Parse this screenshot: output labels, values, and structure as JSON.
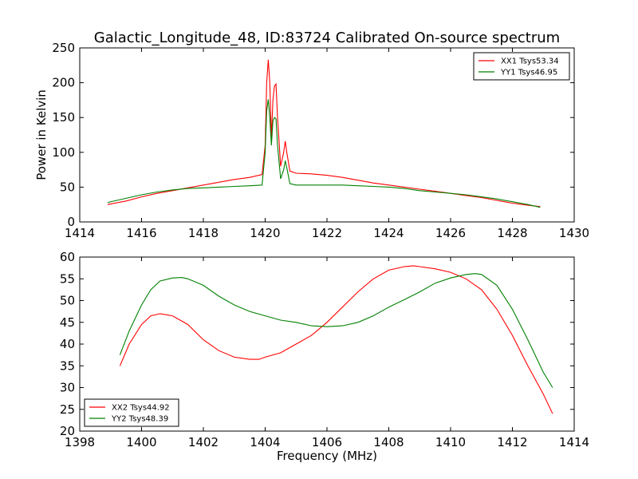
{
  "title": "Galactic_Longitude_48, ID:83724 Calibrated On-source spectrum",
  "chart_data": [
    {
      "type": "line",
      "ylabel": "Power in Kelvin",
      "xlabel": "",
      "xlim": [
        1414,
        1430
      ],
      "ylim": [
        0,
        250
      ],
      "xticks": [
        "1414",
        "1416",
        "1418",
        "1420",
        "1422",
        "1424",
        "1426",
        "1428",
        "1430"
      ],
      "yticks": [
        "0",
        "50",
        "100",
        "150",
        "200",
        "250"
      ],
      "legend_position": "upper-right",
      "series": [
        {
          "name": "XX1 Tsys53.34",
          "color": "#ff0000",
          "x": [
            1414.9,
            1415.5,
            1416.0,
            1416.5,
            1417.0,
            1417.5,
            1418.0,
            1418.5,
            1419.0,
            1419.5,
            1419.9,
            1420.0,
            1420.05,
            1420.1,
            1420.15,
            1420.2,
            1420.25,
            1420.3,
            1420.35,
            1420.4,
            1420.5,
            1420.6,
            1420.65,
            1420.7,
            1420.8,
            1421.0,
            1421.5,
            1422.0,
            1422.5,
            1423.0,
            1423.5,
            1424.0,
            1424.5,
            1425.0,
            1425.5,
            1426.0,
            1426.5,
            1427.0,
            1427.5,
            1428.0,
            1428.5,
            1428.9
          ],
          "y": [
            25,
            30,
            36,
            41,
            45,
            49,
            53,
            57,
            61,
            64,
            68,
            110,
            200,
            233,
            200,
            120,
            175,
            195,
            198,
            150,
            80,
            100,
            116,
            100,
            73,
            70,
            69,
            67,
            64,
            60,
            56,
            53,
            50,
            47,
            44,
            41,
            38,
            35,
            31,
            27,
            24,
            22
          ]
        },
        {
          "name": "YY1 Tsys46.95",
          "color": "#008000",
          "x": [
            1414.9,
            1415.5,
            1416.0,
            1416.5,
            1417.0,
            1417.5,
            1418.0,
            1418.5,
            1419.0,
            1419.5,
            1419.9,
            1420.0,
            1420.05,
            1420.1,
            1420.15,
            1420.2,
            1420.25,
            1420.3,
            1420.35,
            1420.4,
            1420.5,
            1420.6,
            1420.65,
            1420.7,
            1420.8,
            1421.0,
            1421.5,
            1422.0,
            1422.5,
            1423.0,
            1423.5,
            1424.0,
            1424.5,
            1425.0,
            1425.5,
            1426.0,
            1426.5,
            1427.0,
            1427.5,
            1428.0,
            1428.5,
            1428.9
          ],
          "y": [
            28,
            34,
            39,
            43,
            46,
            48,
            49,
            50,
            51,
            52,
            53,
            100,
            160,
            176,
            150,
            110,
            145,
            150,
            148,
            110,
            62,
            75,
            88,
            78,
            55,
            53,
            53,
            53,
            53,
            52,
            51,
            50,
            48,
            45,
            43,
            41,
            39,
            36,
            33,
            29,
            25,
            21
          ]
        }
      ]
    },
    {
      "type": "line",
      "xlabel": "Frequency (MHz)",
      "ylabel": "",
      "xlim": [
        1398,
        1414
      ],
      "ylim": [
        20,
        60
      ],
      "xticks": [
        "1398",
        "1400",
        "1402",
        "1404",
        "1406",
        "1408",
        "1410",
        "1412",
        "1414"
      ],
      "yticks": [
        "20",
        "25",
        "30",
        "35",
        "40",
        "45",
        "50",
        "55",
        "60"
      ],
      "legend_position": "lower-left",
      "series": [
        {
          "name": "XX2 Tsys44.92",
          "color": "#ff0000",
          "x": [
            1399.3,
            1399.6,
            1400.0,
            1400.3,
            1400.6,
            1401.0,
            1401.5,
            1402.0,
            1402.5,
            1403.0,
            1403.5,
            1403.8,
            1404.0,
            1404.5,
            1405.0,
            1405.5,
            1406.0,
            1406.5,
            1407.0,
            1407.5,
            1408.0,
            1408.5,
            1408.8,
            1409.0,
            1409.5,
            1410.0,
            1410.5,
            1411.0,
            1411.5,
            1412.0,
            1412.5,
            1413.0,
            1413.3
          ],
          "y": [
            35,
            40,
            44.5,
            46.5,
            47,
            46.5,
            44.5,
            41,
            38.5,
            37,
            36.5,
            36.5,
            37,
            38,
            40,
            42,
            45,
            48.5,
            52,
            55,
            57,
            57.8,
            58,
            57.8,
            57.3,
            56.5,
            55,
            52.5,
            48,
            42,
            35,
            28.5,
            24
          ]
        },
        {
          "name": "YY2 Tsys48.39",
          "color": "#008000",
          "x": [
            1399.3,
            1399.6,
            1400.0,
            1400.3,
            1400.6,
            1401.0,
            1401.3,
            1401.5,
            1402.0,
            1402.5,
            1403.0,
            1403.5,
            1404.0,
            1404.5,
            1405.0,
            1405.5,
            1406.0,
            1406.5,
            1407.0,
            1407.5,
            1408.0,
            1408.5,
            1409.0,
            1409.5,
            1410.0,
            1410.5,
            1410.8,
            1411.0,
            1411.5,
            1412.0,
            1412.5,
            1413.0,
            1413.3
          ],
          "y": [
            37.5,
            43,
            49,
            52.5,
            54.5,
            55.2,
            55.3,
            55,
            53.5,
            51,
            49,
            47.5,
            46.5,
            45.5,
            45,
            44.2,
            44,
            44.2,
            45,
            46.5,
            48.5,
            50.2,
            52,
            54,
            55.2,
            56,
            56.2,
            56,
            53.5,
            48,
            41,
            33.5,
            30
          ]
        }
      ]
    }
  ]
}
